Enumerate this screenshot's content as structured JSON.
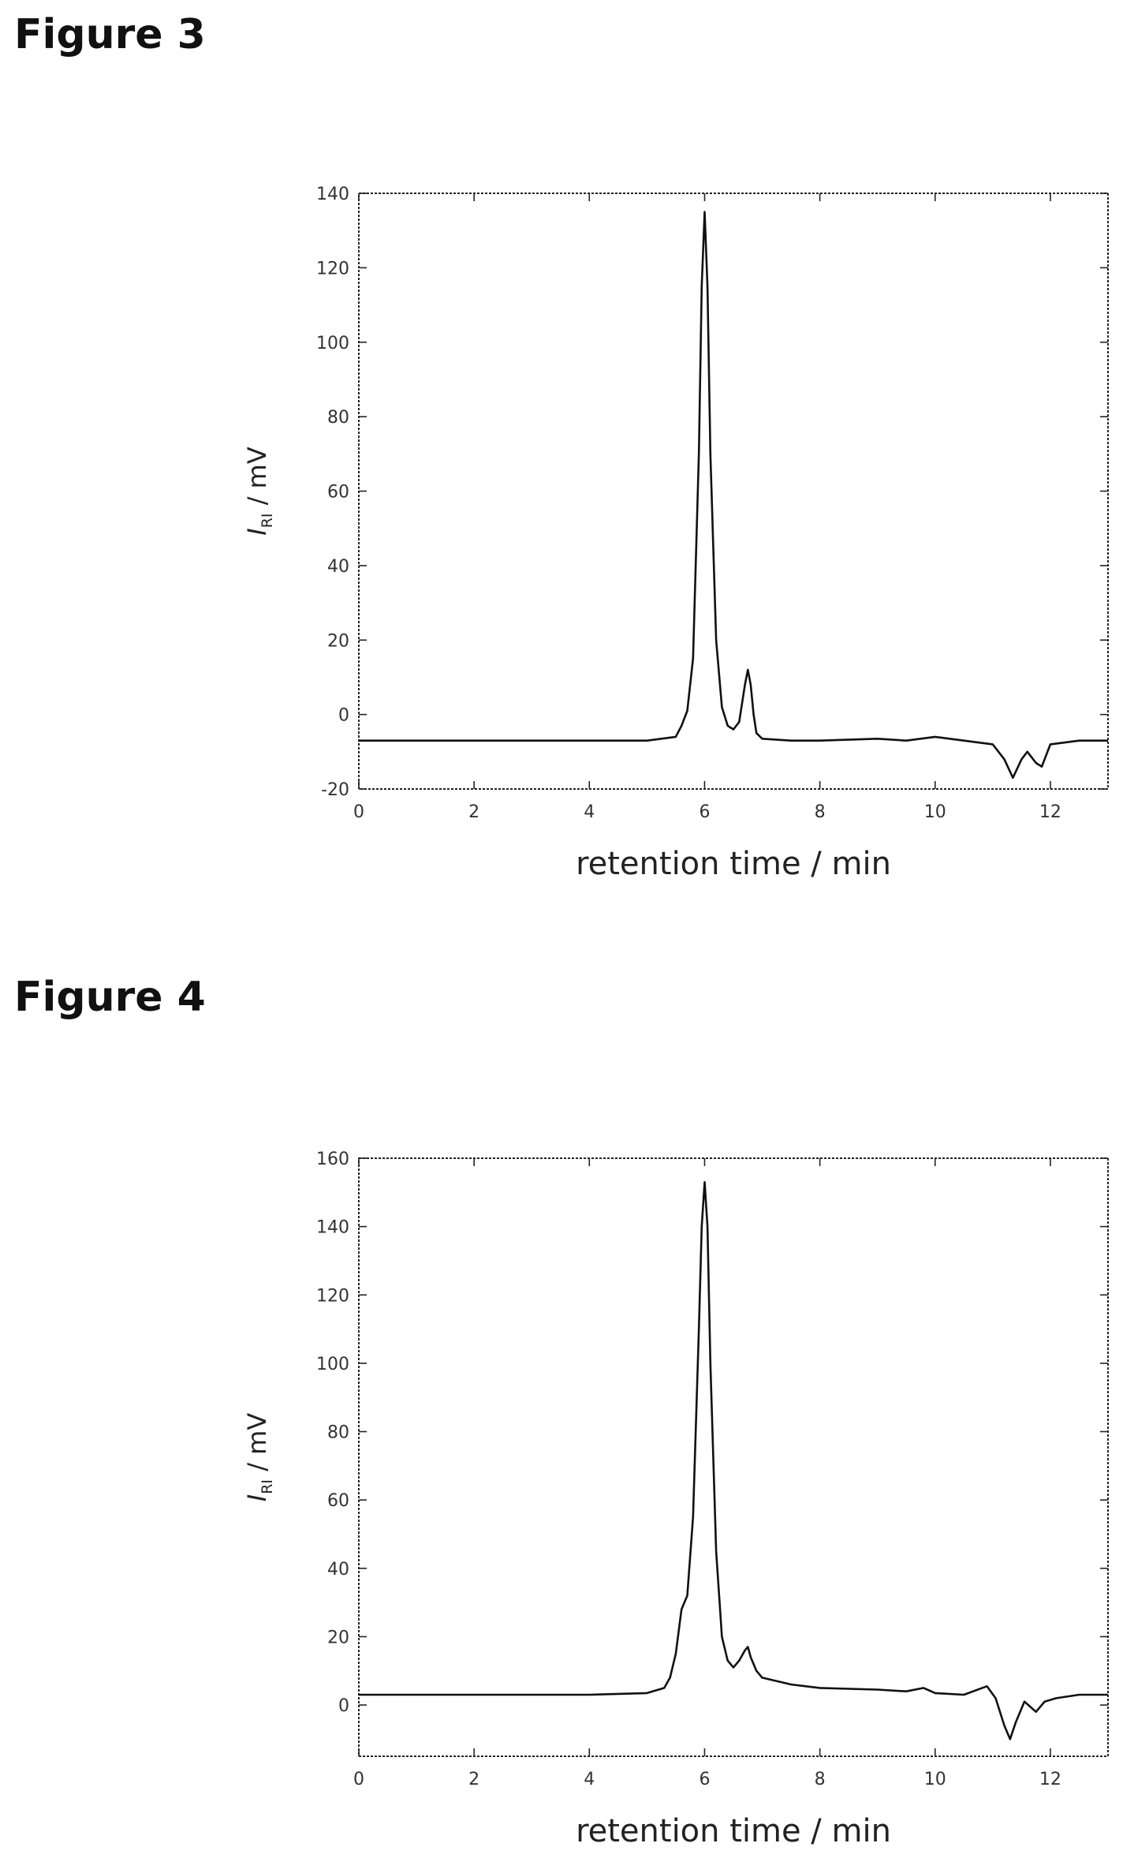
{
  "figures": [
    {
      "heading": "Figure 3"
    },
    {
      "heading": "Figure 4"
    }
  ],
  "chart_data": [
    {
      "type": "line",
      "title": "Figure 3",
      "xlabel": "retention time / min",
      "ylabel": {
        "symbol": "I",
        "subscript": "RI",
        "unit": " / mV"
      },
      "xlim": [
        0,
        13
      ],
      "ylim": [
        -20,
        140
      ],
      "xticks": [
        0,
        2,
        4,
        6,
        8,
        10,
        12
      ],
      "yticks": [
        -20,
        0,
        20,
        40,
        60,
        80,
        100,
        120,
        140
      ],
      "grid": false,
      "series": [
        {
          "x": [
            0,
            2,
            4,
            5,
            5.5,
            5.6,
            5.7,
            5.8,
            5.9,
            5.95,
            6.0,
            6.05,
            6.1,
            6.2,
            6.3,
            6.4,
            6.5,
            6.6,
            6.7,
            6.75,
            6.8,
            6.85,
            6.9,
            7.0,
            7.5,
            8,
            9,
            9.5,
            10,
            10.5,
            11,
            11.2,
            11.35,
            11.5,
            11.6,
            11.75,
            11.85,
            12,
            12.5,
            13
          ],
          "y": [
            -7,
            -7,
            -7,
            -7,
            -6,
            -3,
            1,
            15,
            70,
            115,
            135,
            115,
            70,
            20,
            2,
            -3,
            -4,
            -2,
            8,
            12,
            8,
            0,
            -5,
            -6.5,
            -7,
            -7,
            -6.5,
            -7,
            -6,
            -7,
            -8,
            -12,
            -17,
            -12,
            -10,
            -13,
            -14,
            -8,
            -7,
            -7
          ]
        }
      ]
    },
    {
      "type": "line",
      "title": "Figure 4",
      "xlabel": "retention time / min",
      "ylabel": {
        "symbol": "I",
        "subscript": "RI",
        "unit": " / mV"
      },
      "xlim": [
        0,
        13
      ],
      "ylim": [
        -15,
        160
      ],
      "xticks": [
        0,
        2,
        4,
        6,
        8,
        10,
        12
      ],
      "yticks": [
        0,
        20,
        40,
        60,
        80,
        100,
        120,
        140,
        160
      ],
      "grid": false,
      "series": [
        {
          "x": [
            0,
            2,
            4,
            5,
            5.3,
            5.4,
            5.5,
            5.6,
            5.7,
            5.8,
            5.9,
            5.95,
            6.0,
            6.05,
            6.1,
            6.2,
            6.3,
            6.4,
            6.5,
            6.6,
            6.7,
            6.75,
            6.8,
            6.9,
            7.0,
            7.5,
            8,
            9,
            9.5,
            9.8,
            10,
            10.5,
            10.9,
            11.05,
            11.2,
            11.3,
            11.4,
            11.55,
            11.75,
            11.9,
            12.1,
            12.5,
            13
          ],
          "y": [
            3,
            3,
            3,
            3.5,
            5,
            8,
            15,
            28,
            32,
            55,
            110,
            140,
            153,
            140,
            100,
            45,
            20,
            13,
            11,
            13,
            16,
            17,
            14,
            10,
            8,
            6,
            5,
            4.5,
            4,
            5,
            3.5,
            3,
            5.5,
            2,
            -6,
            -10,
            -5,
            1,
            -2,
            1,
            2,
            3,
            3
          ]
        }
      ]
    }
  ]
}
